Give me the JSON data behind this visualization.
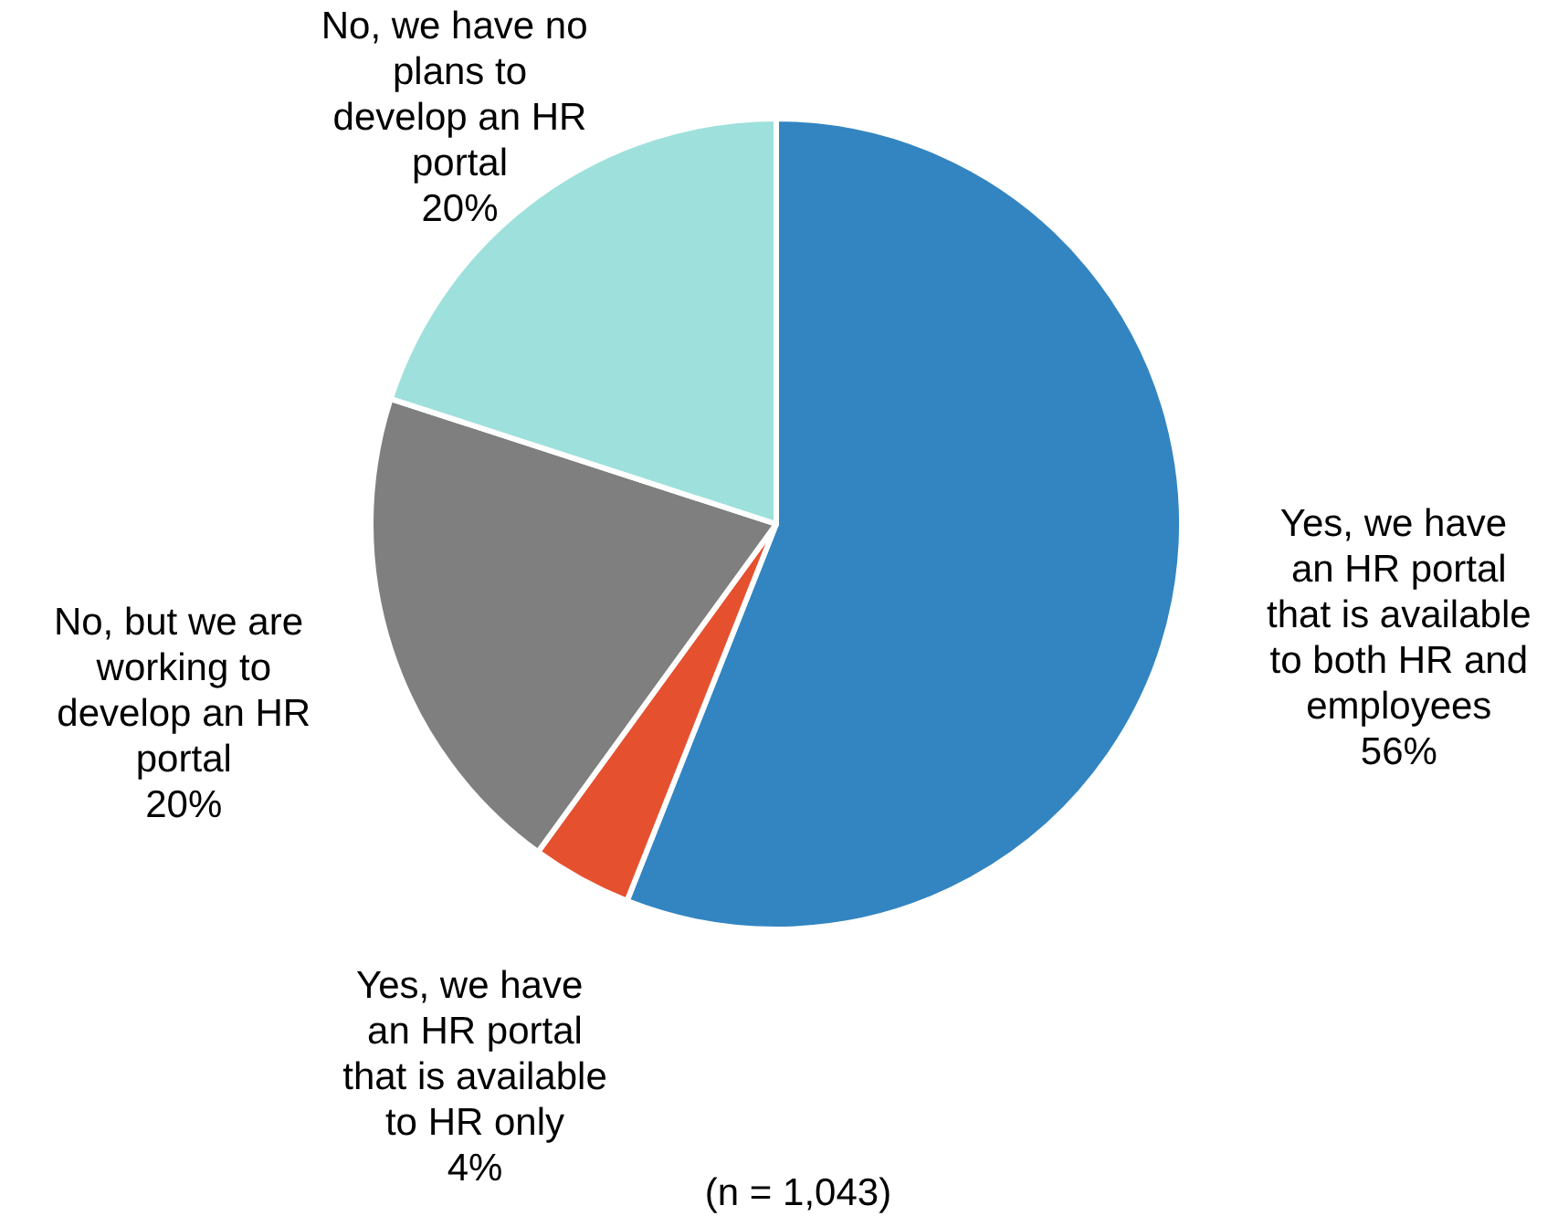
{
  "chart_data": {
    "type": "pie",
    "categories": [
      "Yes, we have\nan HR portal\nthat is available\nto both HR and\nemployees",
      "Yes, we have\nan HR portal\nthat is available\nto HR only",
      "No, but we are\nworking to\ndevelop an HR\nportal",
      "No, we have no\nplans to\ndevelop an HR\nportal"
    ],
    "values": [
      56,
      4,
      20,
      20
    ],
    "value_labels": [
      "56%",
      "4%",
      "20%",
      "20%"
    ],
    "colors": [
      "#3385c1",
      "#e5512f",
      "#7f7f7f",
      "#9ee0dc"
    ],
    "annotations": [
      "(n = 1,043)"
    ]
  }
}
